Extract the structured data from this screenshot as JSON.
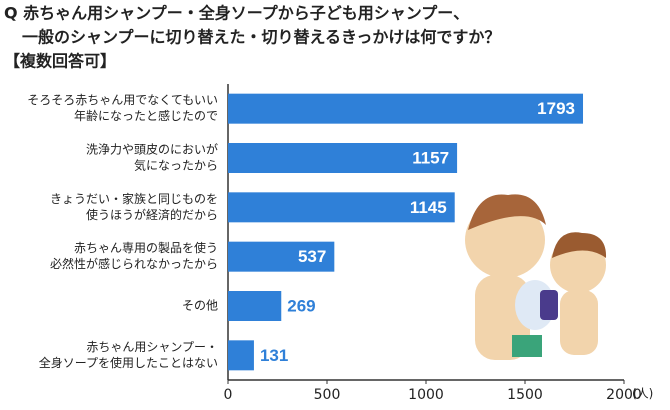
{
  "chart_data": {
    "type": "bar",
    "title": [
      "Q 赤ちゃん用シャンプー・全身ソープから子ども用シャンプー、",
      "一般のシャンプーに切り替えた・切り替えるきっかけは何ですか？"
    ],
    "subtitle": "【複数回答可】",
    "categories": [
      [
        "そろそろ赤ちゃん用でなくてもいい",
        "年齢になったと感じたので"
      ],
      [
        "洗浄力や頭皮のにおいが",
        "気になったから"
      ],
      [
        "きょうだい・家族と同じものを",
        "使うほうが経済的だから"
      ],
      [
        "赤ちゃん専用の製品を使う",
        "必然性が感じられなかったから"
      ],
      [
        "その他"
      ],
      [
        "赤ちゃん用シャンプー・",
        "全身ソープを使用したことはない"
      ]
    ],
    "values": [
      1793,
      1157,
      1145,
      537,
      269,
      131
    ],
    "color": "#2f80d8",
    "xlim": [
      0,
      2000
    ],
    "xticks": [
      0,
      500,
      1000,
      1500,
      2000
    ],
    "x_unit": "(人)"
  }
}
